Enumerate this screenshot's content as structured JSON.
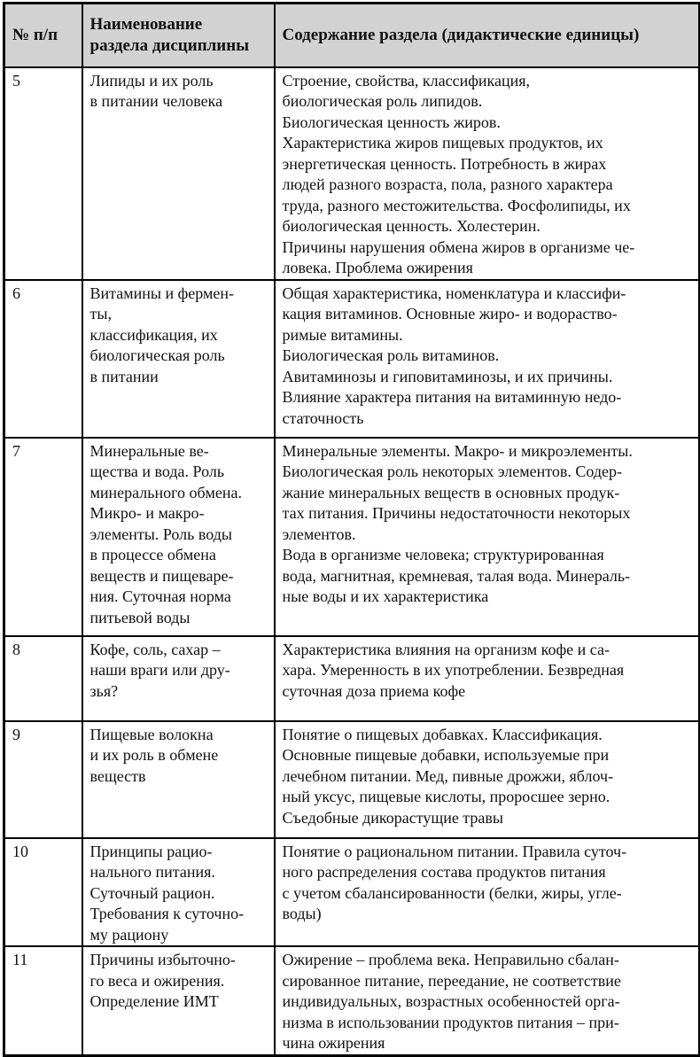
{
  "colors": {
    "header_background": "#d2d2d2",
    "border": "#000000",
    "text": "#111111",
    "page_background": "#ffffff"
  },
  "table": {
    "columns": [
      "№ п/п",
      "Наименование\nраздела дисциплины",
      "Содержание раздела (дидактические единицы)"
    ],
    "rows": [
      {
        "num": "5",
        "name": "Липиды и их роль\nв питании человека",
        "content": "Строение, свойства, классификация,\nбиологическая роль липидов.\nБиологическая ценность жиров.\nХарактеристика жиров пищевых продуктов, их\nэнергетическая ценность. Потребность в жирах\nлюдей разного возраста, пола, разного характера\nтруда, разного местожительства. Фосфолипиды, их\nбиологическая ценность. Холестерин.\nПричины нарушения обмена жиров в организме че-\nловека. Проблема ожирения"
      },
      {
        "num": "6",
        "name": "Витамины и фермен-\nты,\nклассификация, их\nбиологическая роль\nв питании",
        "content": "Общая характеристика, номенклатура и классифи-\nкация витаминов. Основные жиро- и водораство-\nримые витамины.\nБиологическая роль витаминов.\nАвитаминозы и гиповитаминозы, и их причины.\nВлияние характера питания на витаминную недо-\nстаточность"
      },
      {
        "num": "7",
        "name": "Минеральные ве-\nщества и вода. Роль\nминерального обмена.\nМикро- и макро-\nэлементы. Роль воды\nв процессе обмена\nвеществ и пищеваре-\nния. Суточная норма\nпитьевой воды",
        "content": "Минеральные элементы. Макро- и микроэлементы.\nБиологическая роль некоторых элементов. Содер-\nжание минеральных веществ в основных продук-\nтах питания. Причины недостаточности некоторых\nэлементов.\nВода в организме человека; структурированная\nвода, магнитная, кремневая, талая вода. Минераль-\nные воды и их характеристика"
      },
      {
        "num": "8",
        "name": "Кофе, соль, сахар –\nнаши враги или дру-\nзья?",
        "content": "Характеристика влияния на организм кофе и са-\nхара. Умеренность в их употреблении. Безвредная\nсуточная доза приема кофе"
      },
      {
        "num": "9",
        "name": "Пищевые волокна\nи их роль в обмене\nвеществ",
        "content": "Понятие о пищевых добавках. Классификация.\nОсновные пищевые добавки, используемые при\nлечебном питании. Мед, пивные дрожжи, яблоч-\nный уксус, пищевые кислоты, проросшее зерно.\nСъедобные дикорастущие травы"
      },
      {
        "num": "10",
        "name": "Принципы рацио-\nнального питания.\nСуточный рацион.\nТребования к суточно-\nму рациону",
        "content": "Понятие о рациональном питании. Правила суточ-\nного распределения состава продуктов питания\nс учетом сбалансированности (белки, жиры, угле-\nводы)"
      },
      {
        "num": "11",
        "name": "Причины избыточно-\nго веса и ожирения.\nОпределение ИМТ",
        "content": "Ожирение – проблема века. Неправильно сбалан-\nсированное питание, переедание, не соответствие\nиндивидуальных, возрастных особенностей орга-\nнизма в использовании продуктов питания – при-\nчина ожирения"
      }
    ]
  }
}
